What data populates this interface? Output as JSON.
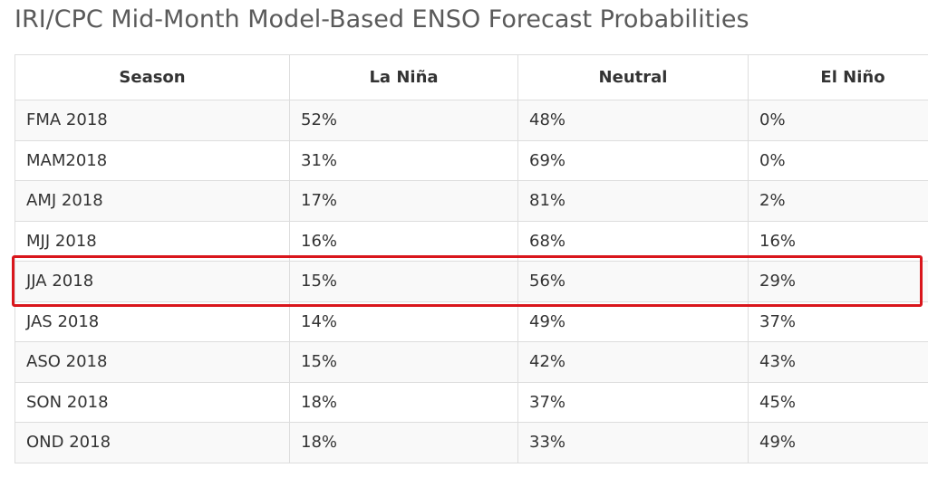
{
  "page": {
    "title": "IRI/CPC Mid-Month Model-Based ENSO Forecast Probabilities"
  },
  "table": {
    "headers": [
      "Season",
      "La Niña",
      "Neutral",
      "El Niño"
    ],
    "rows": [
      [
        "FMA 2018",
        "52%",
        "48%",
        "0%"
      ],
      [
        "MAM2018",
        "31%",
        "69%",
        "0%"
      ],
      [
        "AMJ 2018",
        "17%",
        "81%",
        "2%"
      ],
      [
        "MJJ 2018",
        "16%",
        "68%",
        "16%"
      ],
      [
        "JJA 2018",
        "15%",
        "56%",
        "29%"
      ],
      [
        "JAS 2018",
        "14%",
        "49%",
        "37%"
      ],
      [
        "ASO 2018",
        "15%",
        "42%",
        "43%"
      ],
      [
        "SON 2018",
        "18%",
        "37%",
        "45%"
      ],
      [
        "OND 2018",
        "18%",
        "33%",
        "49%"
      ]
    ],
    "highlighted_row": "JJA 2018"
  },
  "colors": {
    "highlight_border": "#d9161c",
    "row_stripe": "#f9f9f9",
    "border": "#dddddd",
    "title_text": "#5a5a5a",
    "body_text": "#333333"
  }
}
